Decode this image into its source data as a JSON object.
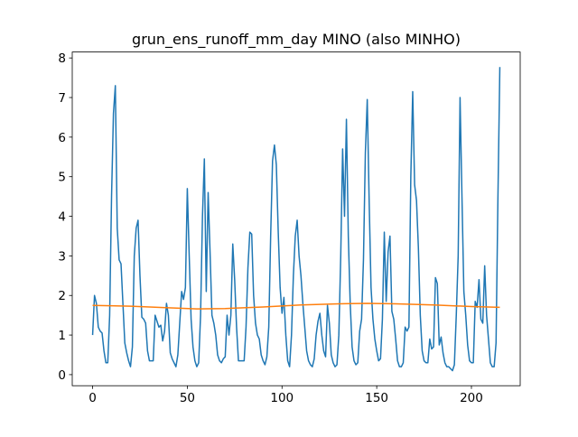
{
  "chart_data": {
    "type": "line",
    "title": "grun_ens_runoff_mm_day MINO (also MINHO)",
    "xlim": [
      -10.75,
      225.75
    ],
    "ylim": [
      -0.28,
      8.15
    ],
    "xticks": [
      0,
      50,
      100,
      150,
      200
    ],
    "yticks": [
      0,
      1,
      2,
      3,
      4,
      5,
      6,
      7,
      8
    ],
    "grid": false,
    "series": [
      {
        "color": "#1f77b4",
        "x": [
          0,
          1,
          2,
          3,
          4,
          5,
          6,
          7,
          8,
          9,
          10,
          11,
          12,
          13,
          14,
          15,
          16,
          17,
          18,
          19,
          20,
          21,
          22,
          23,
          24,
          25,
          26,
          27,
          28,
          29,
          30,
          31,
          32,
          33,
          34,
          35,
          36,
          37,
          38,
          39,
          40,
          41,
          42,
          43,
          44,
          45,
          46,
          47,
          48,
          49,
          50,
          51,
          52,
          53,
          54,
          55,
          56,
          57,
          58,
          59,
          60,
          61,
          62,
          63,
          64,
          65,
          66,
          67,
          68,
          69,
          70,
          71,
          72,
          73,
          74,
          75,
          76,
          77,
          78,
          79,
          80,
          81,
          82,
          83,
          84,
          85,
          86,
          87,
          88,
          89,
          90,
          91,
          92,
          93,
          94,
          95,
          96,
          97,
          98,
          99,
          100,
          101,
          102,
          103,
          104,
          105,
          106,
          107,
          108,
          109,
          110,
          111,
          112,
          113,
          114,
          115,
          116,
          117,
          118,
          119,
          120,
          121,
          122,
          123,
          124,
          125,
          126,
          127,
          128,
          129,
          130,
          131,
          132,
          133,
          134,
          135,
          136,
          137,
          138,
          139,
          140,
          141,
          142,
          143,
          144,
          145,
          146,
          147,
          148,
          149,
          150,
          151,
          152,
          153,
          154,
          155,
          156,
          157,
          158,
          159,
          160,
          161,
          162,
          163,
          164,
          165,
          166,
          167,
          168,
          169,
          170,
          171,
          172,
          173,
          174,
          175,
          176,
          177,
          178,
          179,
          180,
          181,
          182,
          183,
          184,
          185,
          186,
          187,
          188,
          189,
          190,
          191,
          192,
          193,
          194,
          195,
          196,
          197,
          198,
          199,
          200,
          201,
          202,
          203,
          204,
          205,
          206,
          207,
          208,
          209,
          210,
          211,
          212,
          213,
          214,
          215
        ],
        "values": [
          1.0,
          2.0,
          1.8,
          1.2,
          1.1,
          1.05,
          0.6,
          0.3,
          0.3,
          1.5,
          4.5,
          6.6,
          7.3,
          3.7,
          2.9,
          2.8,
          1.8,
          0.8,
          0.55,
          0.35,
          0.2,
          0.7,
          3.0,
          3.7,
          3.9,
          2.5,
          1.45,
          1.4,
          1.3,
          0.6,
          0.35,
          0.35,
          0.35,
          1.5,
          1.35,
          1.2,
          1.25,
          0.85,
          1.1,
          1.8,
          1.5,
          0.55,
          0.4,
          0.3,
          0.2,
          0.5,
          1.3,
          2.1,
          1.9,
          2.2,
          4.7,
          3.0,
          1.4,
          0.7,
          0.35,
          0.2,
          0.3,
          1.5,
          4.0,
          5.45,
          2.1,
          4.6,
          3.1,
          1.5,
          1.3,
          1.0,
          0.5,
          0.35,
          0.3,
          0.4,
          0.45,
          1.5,
          1.0,
          1.5,
          3.3,
          2.4,
          1.2,
          0.35,
          0.35,
          0.35,
          0.35,
          1.2,
          2.7,
          3.6,
          3.55,
          2.0,
          1.3,
          1.0,
          0.9,
          0.5,
          0.35,
          0.25,
          0.45,
          1.2,
          3.5,
          5.4,
          5.8,
          5.3,
          3.6,
          2.2,
          1.55,
          1.95,
          1.0,
          0.35,
          0.2,
          1.0,
          2.5,
          3.5,
          3.9,
          3.0,
          2.5,
          1.8,
          1.2,
          0.6,
          0.35,
          0.25,
          0.2,
          0.4,
          1.0,
          1.35,
          1.55,
          1.0,
          0.6,
          0.45,
          1.75,
          1.3,
          0.5,
          0.3,
          0.2,
          0.25,
          1.0,
          3.0,
          5.7,
          4.0,
          6.45,
          3.5,
          1.8,
          0.7,
          0.35,
          0.25,
          0.3,
          1.1,
          1.4,
          2.9,
          5.6,
          6.95,
          4.4,
          2.2,
          1.4,
          0.9,
          0.6,
          0.35,
          0.4,
          1.4,
          3.6,
          1.85,
          3.1,
          3.5,
          1.6,
          1.4,
          0.9,
          0.35,
          0.2,
          0.2,
          0.3,
          1.2,
          1.1,
          1.2,
          5.0,
          7.15,
          4.8,
          4.4,
          3.2,
          1.5,
          0.6,
          0.35,
          0.3,
          0.3,
          0.9,
          0.65,
          0.7,
          2.45,
          2.3,
          0.75,
          0.95,
          0.55,
          0.3,
          0.2,
          0.2,
          0.15,
          0.1,
          0.25,
          1.5,
          3.0,
          7.0,
          4.5,
          2.1,
          1.5,
          0.75,
          0.35,
          0.3,
          0.3,
          1.85,
          1.7,
          2.4,
          1.4,
          1.3,
          2.75,
          1.5,
          0.9,
          0.3,
          0.2,
          0.2,
          0.8,
          4.5,
          7.77
        ]
      },
      {
        "color": "#ff7f0e",
        "x": [
          0,
          20,
          40,
          55,
          70,
          90,
          110,
          130,
          145,
          160,
          180,
          200,
          215
        ],
        "values": [
          1.75,
          1.73,
          1.69,
          1.66,
          1.67,
          1.71,
          1.76,
          1.79,
          1.8,
          1.79,
          1.76,
          1.72,
          1.7
        ]
      }
    ]
  }
}
